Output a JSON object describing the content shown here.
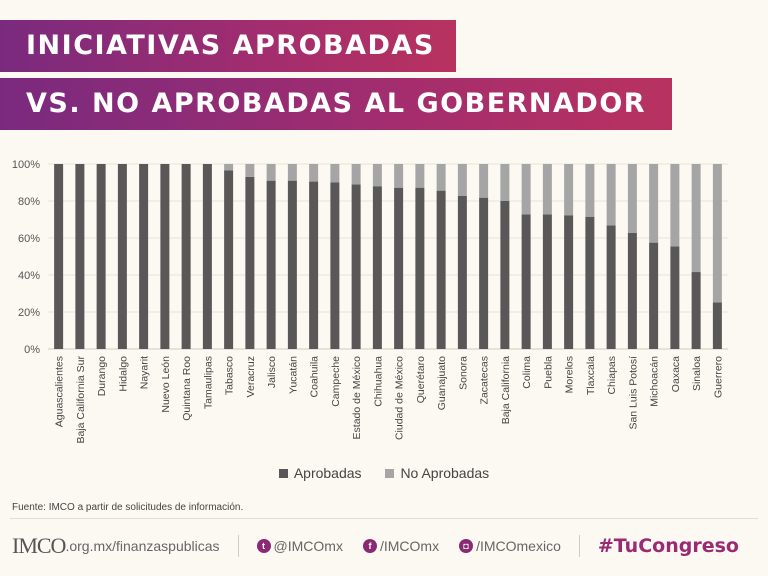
{
  "title_line1": "INICIATIVAS APROBADAS",
  "title_line2": "VS. NO APROBADAS AL GOBERNADOR",
  "source": "Fuente: IMCO a partir de solicitudes de información.",
  "footer": {
    "logo": "IMCO",
    "site": ".org.mx/finanzaspublicas",
    "twitter": "@IMCOmx",
    "facebook": "/IMCOmx",
    "instagram": "/IMCOmexico",
    "hashtag": "#TuCongreso"
  },
  "colors": {
    "aprobadas": "#595757",
    "no_aprobadas": "#a6a5a5",
    "brand": "#9a2a72"
  },
  "chart_data": {
    "type": "bar",
    "stacked": true,
    "ylim": [
      0,
      100
    ],
    "grid": true,
    "legend": "bottom",
    "yticks": [
      "0%",
      "20%",
      "40%",
      "60%",
      "80%",
      "100%"
    ],
    "categories": [
      "Aguascalientes",
      "Baja California Sur",
      "Durango",
      "Hidalgo",
      "Nayarit",
      "Nuevo León",
      "Quintana Roo",
      "Tamaulipas",
      "Tabasco",
      "Veracruz",
      "Jalisco",
      "Yucatán",
      "Coahuila",
      "Campeche",
      "Estado de México",
      "Chihuahua",
      "Ciudad de México",
      "Querétaro",
      "Guanajuato",
      "Sonora",
      "Zacatecas",
      "Baja California",
      "Colima",
      "Puebla",
      "Morelos",
      "Tlaxcala",
      "Chiapas",
      "San Luis Potosí",
      "Michoacán",
      "Oaxaca",
      "Sinaloa",
      "Guerrero"
    ],
    "series": [
      {
        "name": "Aprobadas",
        "values": [
          100,
          100,
          100,
          100,
          100,
          100,
          100,
          100,
          96.5,
          93,
          91,
          91,
          90.5,
          90,
          89,
          88,
          87.2,
          87.2,
          85.6,
          82.7,
          81.8,
          80,
          72.8,
          72.8,
          72.3,
          71.5,
          66.8,
          62.7,
          57.5,
          55.5,
          41.6,
          25.2
        ]
      },
      {
        "name": "No Aprobadas",
        "values": [
          0,
          0,
          0,
          0,
          0,
          0,
          0,
          0,
          3.5,
          7,
          9,
          9,
          9.5,
          10,
          11,
          12,
          12.8,
          12.8,
          14.4,
          17.3,
          18.2,
          20,
          27.2,
          27.2,
          27.7,
          28.5,
          33.2,
          37.3,
          42.5,
          44.5,
          58.4,
          74.8
        ]
      }
    ]
  }
}
